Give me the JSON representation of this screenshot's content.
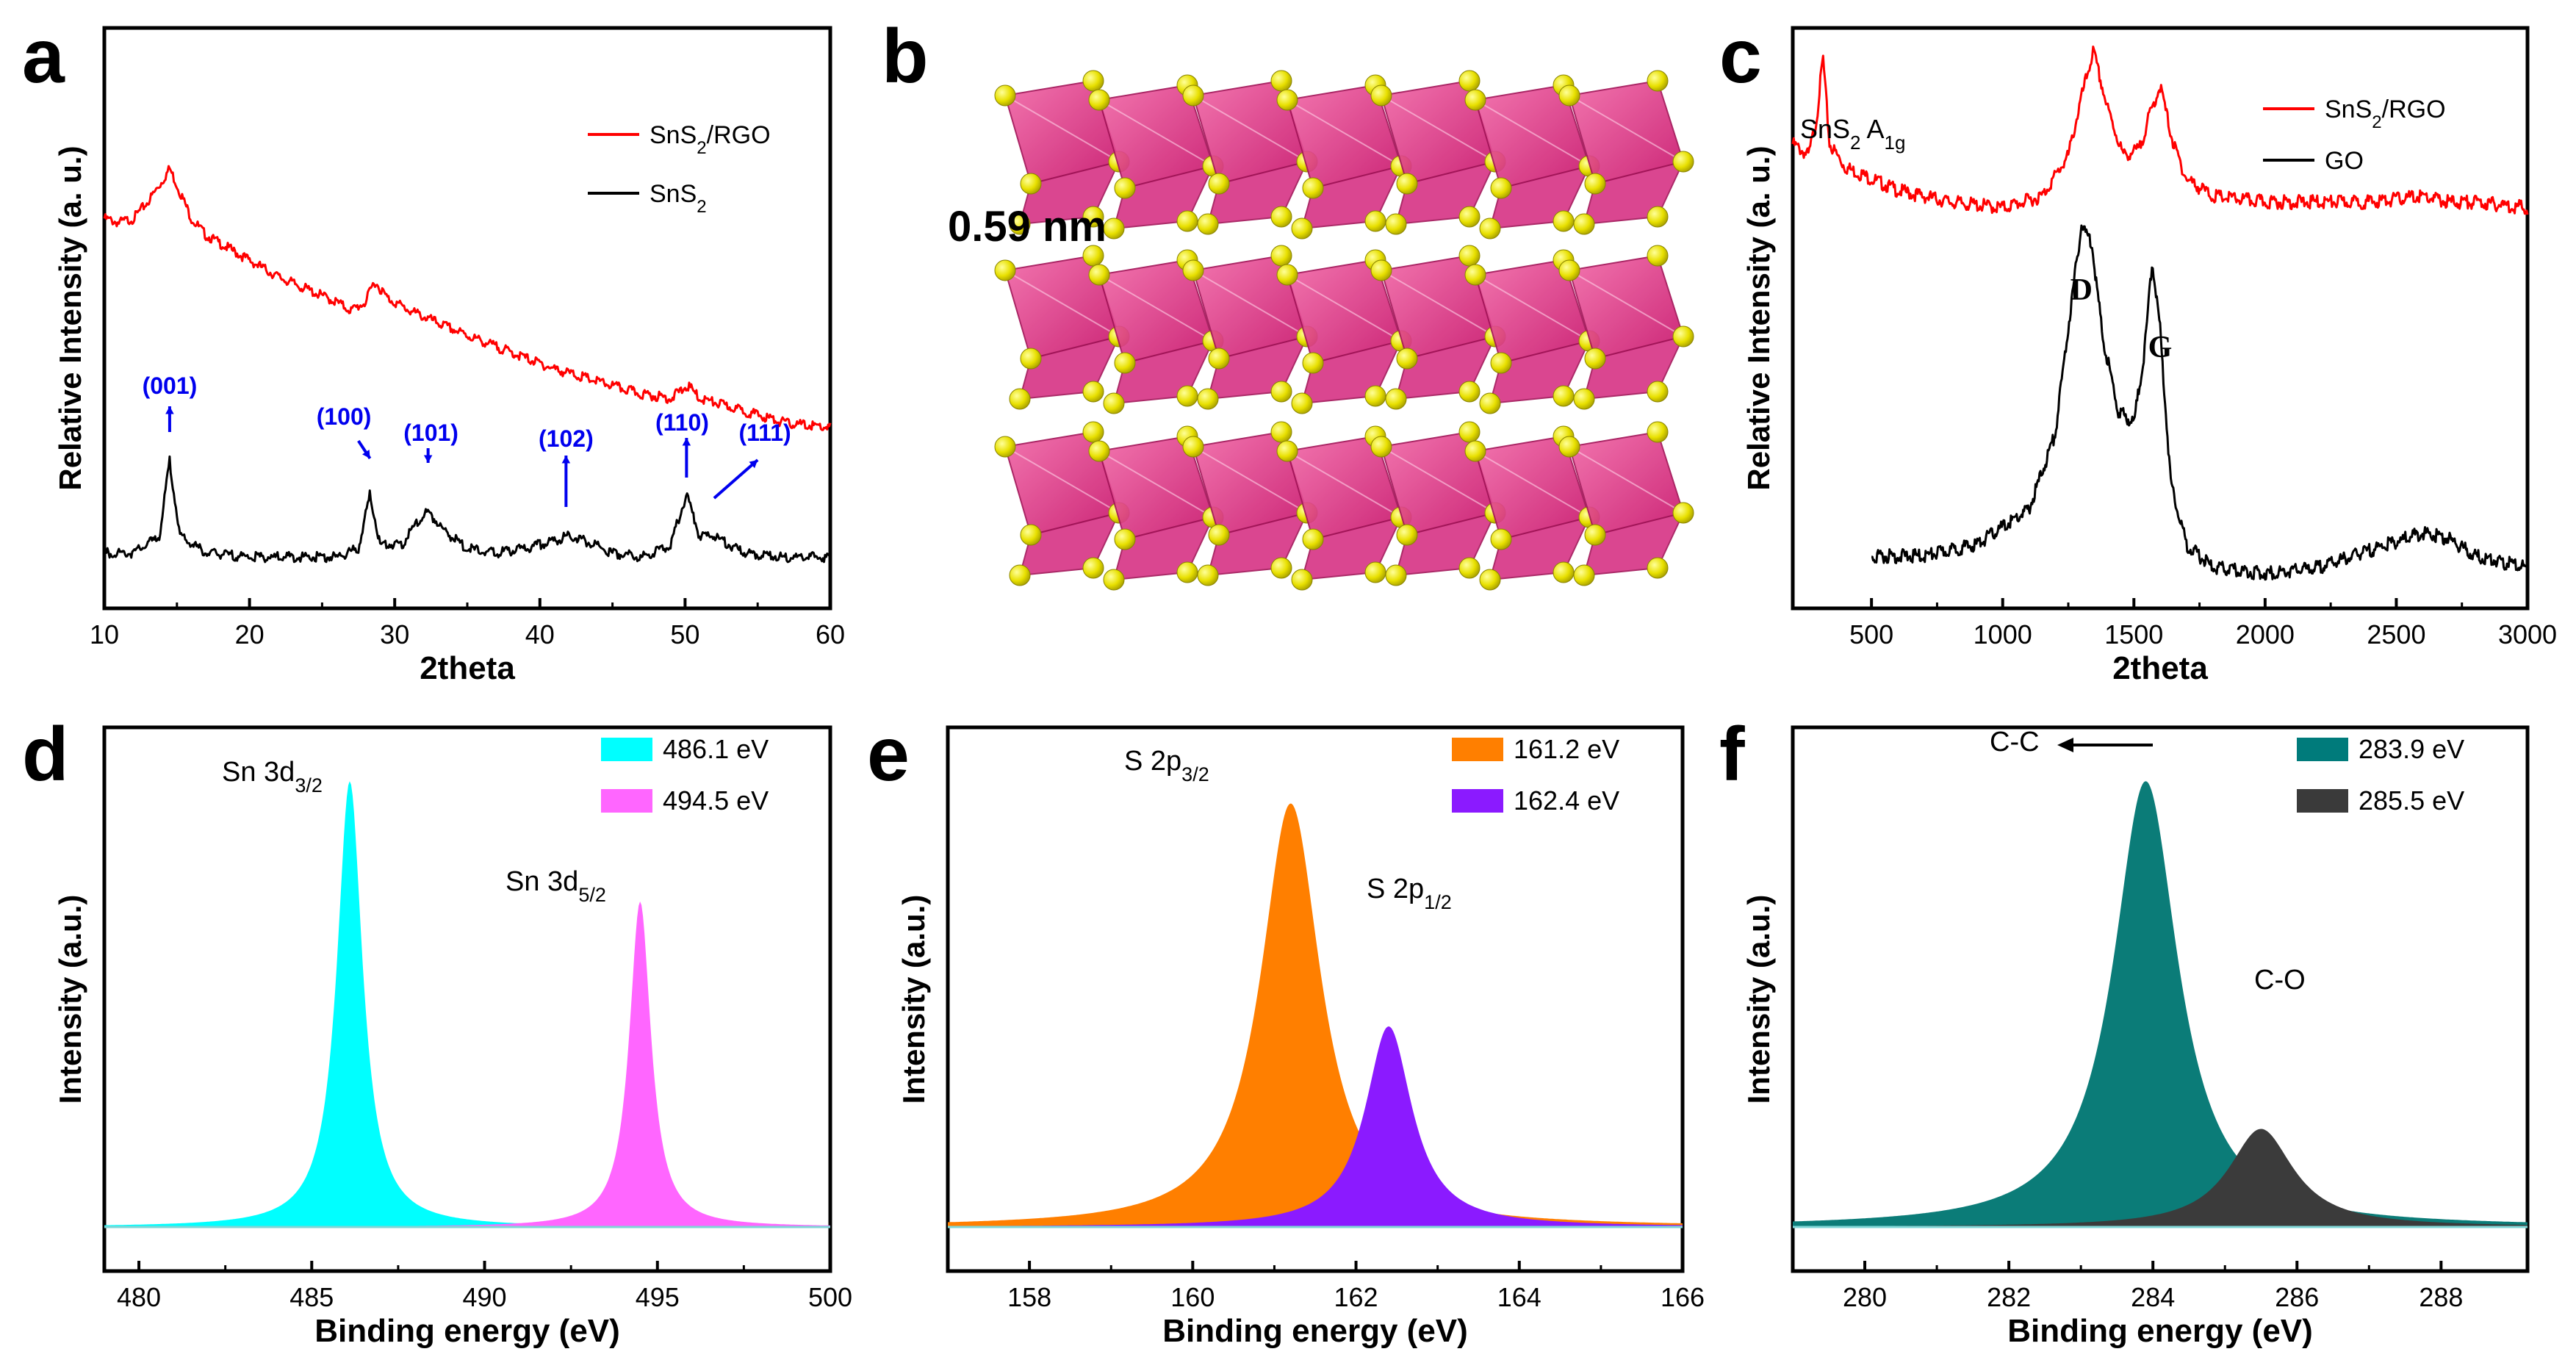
{
  "chart_data": [
    {
      "panel": "a",
      "type": "line",
      "xlabel": "2theta",
      "ylabel": "Relative Intensity (a. u.)",
      "xlim": [
        10,
        60
      ],
      "xticks": [
        10,
        20,
        30,
        40,
        50,
        60
      ],
      "legend": [
        {
          "label": "SnS2/RGO",
          "color": "#ff0000"
        },
        {
          "label": "SnS2",
          "color": "#000000"
        }
      ],
      "series": [
        {
          "name": "SnS2/RGO",
          "color": "#ff0000",
          "x": [
            10,
            11,
            12,
            13,
            14,
            14.5,
            15,
            16,
            17,
            18,
            20,
            22,
            24,
            26,
            27,
            28,
            28.6,
            29.5,
            31,
            33,
            35,
            38,
            41,
            44,
            47,
            49,
            50.2,
            51,
            53,
            55,
            57,
            60
          ],
          "y": [
            0.88,
            0.87,
            0.88,
            0.92,
            0.97,
            1.0,
            0.96,
            0.88,
            0.84,
            0.82,
            0.78,
            0.74,
            0.71,
            0.68,
            0.66,
            0.68,
            0.73,
            0.69,
            0.66,
            0.63,
            0.6,
            0.56,
            0.52,
            0.49,
            0.46,
            0.45,
            0.48,
            0.45,
            0.43,
            0.41,
            0.39,
            0.38
          ]
        },
        {
          "name": "SnS2",
          "color": "#000000",
          "x": [
            10,
            12,
            13.8,
            14.5,
            15.2,
            17,
            20,
            24,
            26,
            27.5,
            28.3,
            29,
            30.5,
            31.5,
            32.3,
            33.5,
            35,
            37,
            39,
            41,
            42,
            43,
            45,
            47,
            49,
            50.1,
            51,
            52,
            54,
            57,
            60
          ],
          "y": [
            0.08,
            0.08,
            0.12,
            0.3,
            0.12,
            0.08,
            0.07,
            0.07,
            0.07,
            0.09,
            0.22,
            0.1,
            0.1,
            0.15,
            0.18,
            0.13,
            0.09,
            0.08,
            0.09,
            0.11,
            0.12,
            0.11,
            0.08,
            0.07,
            0.1,
            0.22,
            0.12,
            0.12,
            0.08,
            0.07,
            0.07
          ]
        }
      ],
      "annotations": [
        "(001)",
        "(100)",
        "(101)",
        "(102)",
        "(110)",
        "(111)"
      ]
    },
    {
      "panel": "b",
      "type": "diagram",
      "annotation": "0.59 nm"
    },
    {
      "panel": "c",
      "type": "line",
      "xlabel": "2theta",
      "ylabel": "Relative Intensity (a. u.)",
      "xlim": [
        200,
        3000
      ],
      "xticks": [
        500,
        1000,
        1500,
        2000,
        2500,
        3000
      ],
      "legend": [
        {
          "label": "SnS2/RGO",
          "color": "#ff0000"
        },
        {
          "label": "GO",
          "color": "#000000"
        }
      ],
      "annotations": [
        "SnS2 A1g",
        "D",
        "G"
      ],
      "series": [
        {
          "name": "SnS2/RGO",
          "color": "#ff0000",
          "x": [
            200,
            260,
            290,
            315,
            340,
            400,
            600,
            800,
            1000,
            1150,
            1250,
            1300,
            1345,
            1400,
            1460,
            1520,
            1560,
            1600,
            1650,
            1700,
            1800,
            2000,
            2200,
            2400,
            2600,
            2700,
            2800,
            3000
          ],
          "y": [
            0.8,
            0.78,
            0.84,
            0.95,
            0.8,
            0.76,
            0.72,
            0.7,
            0.69,
            0.71,
            0.78,
            0.88,
            0.96,
            0.86,
            0.78,
            0.79,
            0.85,
            0.9,
            0.8,
            0.74,
            0.71,
            0.7,
            0.7,
            0.7,
            0.71,
            0.7,
            0.7,
            0.69
          ]
        },
        {
          "name": "GO",
          "color": "#000000",
          "x": [
            500,
            700,
            900,
            1100,
            1200,
            1260,
            1300,
            1340,
            1380,
            1440,
            1500,
            1540,
            1570,
            1600,
            1640,
            1700,
            1800,
            2000,
            2200,
            2400,
            2600,
            2700,
            2800,
            3000
          ],
          "y": [
            0.09,
            0.09,
            0.11,
            0.17,
            0.3,
            0.52,
            0.66,
            0.63,
            0.47,
            0.34,
            0.32,
            0.44,
            0.6,
            0.48,
            0.22,
            0.11,
            0.07,
            0.06,
            0.07,
            0.1,
            0.13,
            0.12,
            0.09,
            0.07
          ]
        }
      ]
    },
    {
      "panel": "d",
      "type": "area",
      "xlabel": "Binding energy (eV)",
      "ylabel": "Intensity (a.u.)",
      "xlim": [
        479,
        500
      ],
      "xticks": [
        480,
        485,
        490,
        495,
        500
      ],
      "legend": [
        {
          "label": "486.1 eV",
          "color": "#00ffff"
        },
        {
          "label": "494.5 eV",
          "color": "#ff66ff"
        }
      ],
      "annotations": [
        "Sn 3d3/2",
        "Sn 3d5/2"
      ],
      "peaks": [
        {
          "center": 486.1,
          "height": 1.0,
          "width": 0.45,
          "color": "#00ffff"
        },
        {
          "center": 494.5,
          "height": 0.73,
          "width": 0.38,
          "color": "#ff66ff"
        }
      ]
    },
    {
      "panel": "e",
      "type": "area",
      "xlabel": "Binding energy (eV)",
      "ylabel": "Intensity (a.u.)",
      "xlim": [
        157,
        166
      ],
      "xticks": [
        158,
        160,
        162,
        164,
        166
      ],
      "legend": [
        {
          "label": "161.2 eV",
          "color": "#ff7f00"
        },
        {
          "label": "162.4 eV",
          "color": "#8b1aff"
        }
      ],
      "annotations": [
        "S 2p3/2",
        "S 2p1/2"
      ],
      "peaks": [
        {
          "center": 161.2,
          "height": 0.95,
          "width": 0.45,
          "color": "#ff7f00"
        },
        {
          "center": 162.4,
          "height": 0.45,
          "width": 0.35,
          "color": "#8b1aff"
        }
      ]
    },
    {
      "panel": "f",
      "type": "area",
      "xlabel": "Binding energy (eV)",
      "ylabel": "Intensity (a.u.)",
      "xlim": [
        279,
        289.2
      ],
      "xticks": [
        280,
        282,
        284,
        286,
        288
      ],
      "legend": [
        {
          "label": "283.9 eV",
          "color": "#007b7b"
        },
        {
          "label": "285.5 eV",
          "color": "#3a3a3a"
        }
      ],
      "annotations": [
        "C-C",
        "C-O"
      ],
      "peaks": [
        {
          "center": 283.9,
          "height": 1.0,
          "width": 0.55,
          "color": "#0b7c78"
        },
        {
          "center": 285.5,
          "height": 0.22,
          "width": 0.55,
          "color": "#3b3b3b"
        }
      ]
    }
  ]
}
